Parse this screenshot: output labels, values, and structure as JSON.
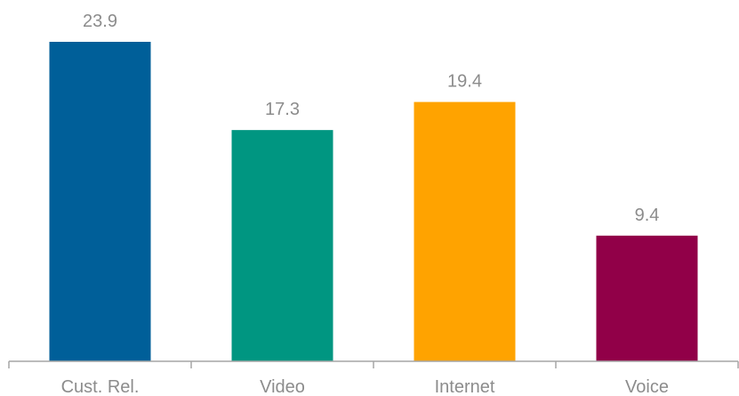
{
  "chart_data": {
    "type": "bar",
    "title": "",
    "xlabel": "",
    "ylabel": "",
    "categories": [
      "Cust. Rel.",
      "Video",
      "Internet",
      "Voice"
    ],
    "values": [
      23.9,
      17.3,
      19.4,
      9.4
    ],
    "data_labels": [
      "23.9",
      "17.3",
      "19.4",
      "9.4"
    ],
    "colors": [
      "#005f99",
      "#009681",
      "#ffa300",
      "#910048"
    ],
    "ylim": [
      0,
      23.9
    ],
    "grid": false,
    "legend": "none"
  }
}
